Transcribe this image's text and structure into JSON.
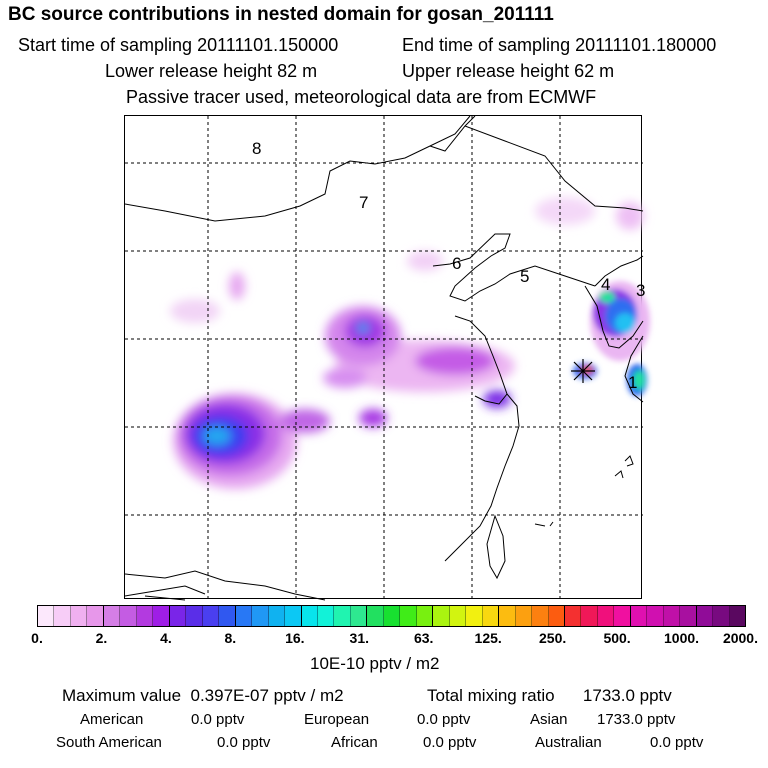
{
  "header": {
    "title": "BC  source contributions in nested domain for gosan_201111",
    "start_time": "Start time of sampling 20111101.150000",
    "end_time": "End time of sampling 20111101.180000",
    "lower_release": "Lower release height   82 m",
    "upper_release": "Upper release height   62 m",
    "tracer_note": "Passive tracer used, meteorological data are from ECMWF"
  },
  "map": {
    "region_labels": [
      "8",
      "7",
      "6",
      "5",
      "4",
      "3",
      "1"
    ]
  },
  "colorbar": {
    "ticks": [
      "0.",
      "2.",
      "4.",
      "8.",
      "16.",
      "31.",
      "63.",
      "125.",
      "250.",
      "500.",
      "1000.",
      "2000."
    ],
    "units": "10E-10 pptv / m2",
    "colors": [
      "#fce8fc",
      "#f7cdf7",
      "#f0b0f0",
      "#e797ea",
      "#d57ee6",
      "#c45ce3",
      "#b33ae0",
      "#9f1ee6",
      "#7a25e8",
      "#5a2ee8",
      "#4a3ff0",
      "#3058f0",
      "#2878f5",
      "#2098f5",
      "#10b2f0",
      "#0cc8f4",
      "#08e4ec",
      "#12f2d8",
      "#20f4b0",
      "#2ee890",
      "#22e060",
      "#18e030",
      "#40ec18",
      "#78f010",
      "#aaf410",
      "#d2f410",
      "#f2f010",
      "#f8d810",
      "#fcbc10",
      "#fca010",
      "#fc8010",
      "#fc5c10",
      "#f43030",
      "#f01858",
      "#f0107c",
      "#f010a0",
      "#e010b0",
      "#d010b0",
      "#c010a8",
      "#a810a0",
      "#900c98",
      "#780a80",
      "#5a0860"
    ]
  },
  "stats": {
    "max_label": "Maximum value",
    "max_value": "0.397E-07 pptv / m2",
    "total_label": "Total mixing ratio",
    "total_value": "1733.0 pptv",
    "sources": [
      {
        "name": "American",
        "value": "0.0 pptv"
      },
      {
        "name": "European",
        "value": "0.0 pptv"
      },
      {
        "name": "Asian",
        "value": "1733.0 pptv"
      },
      {
        "name": "South American",
        "value": "0.0 pptv"
      },
      {
        "name": "African",
        "value": "0.0 pptv"
      },
      {
        "name": "Australian",
        "value": "0.0 pptv"
      }
    ]
  }
}
